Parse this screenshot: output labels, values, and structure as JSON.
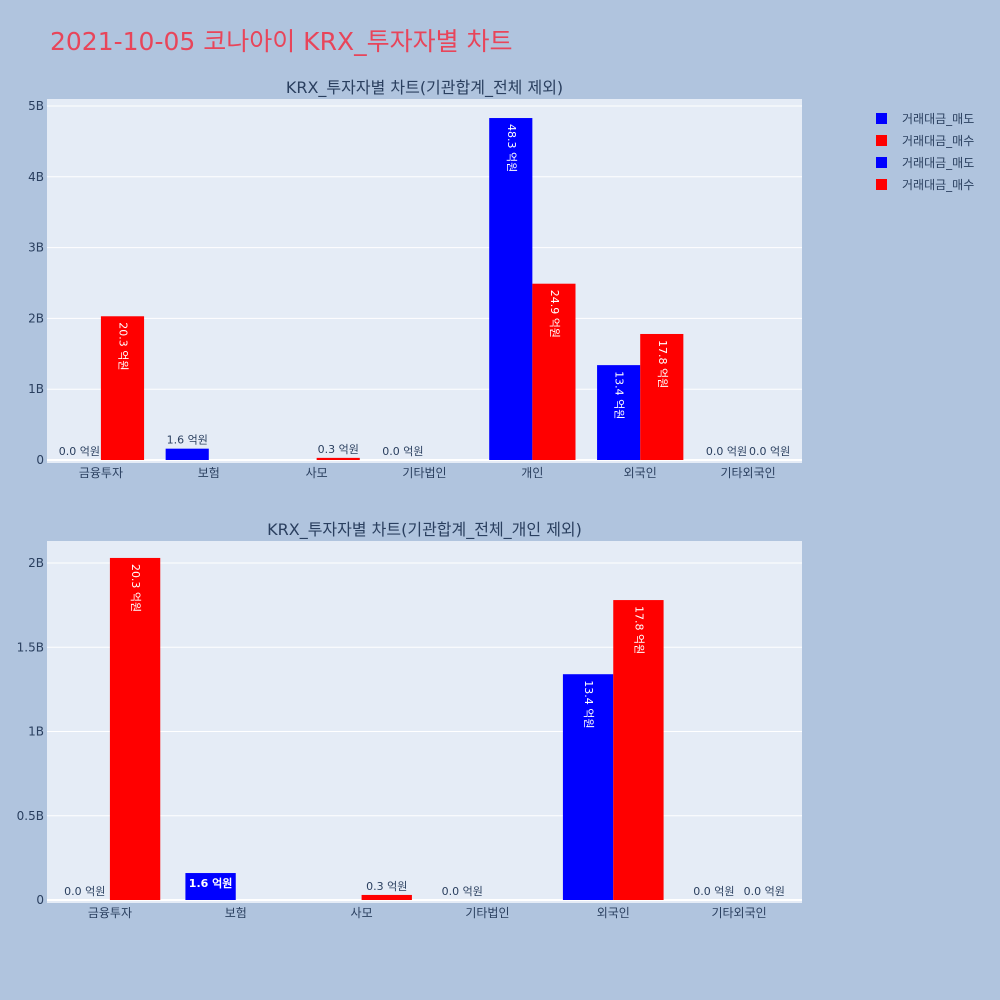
{
  "page_title": "2021-10-05 코나아이 KRX_투자자별 차트",
  "colors": {
    "sell": "#0000ff",
    "buy": "#ff0000",
    "title": "#e8455a",
    "plot_bg": "#e5ecf6",
    "page_bg": "#b0c4de"
  },
  "legend": [
    {
      "label": "거래대금_매도",
      "color": "#0000ff"
    },
    {
      "label": "거래대금_매수",
      "color": "#ff0000"
    },
    {
      "label": "거래대금_매도",
      "color": "#0000ff"
    },
    {
      "label": "거래대금_매수",
      "color": "#ff0000"
    }
  ],
  "chart_data": [
    {
      "type": "bar",
      "title": "KRX_투자자별 차트(기관합계_전체 제외)",
      "categories": [
        "금융투자",
        "보험",
        "사모",
        "기타법인",
        "개인",
        "외국인",
        "기타외국인"
      ],
      "y_ticks": [
        "0",
        "1B",
        "2B",
        "3B",
        "4B",
        "5B"
      ],
      "ylim": [
        0,
        5000000000
      ],
      "series": [
        {
          "name": "거래대금_매도",
          "color": "#0000ff",
          "values": [
            0,
            160000000,
            0,
            0,
            4830000000,
            1340000000,
            0
          ],
          "labels": [
            "0.0 억원",
            "1.6 억원",
            "",
            "0.0 억원",
            "48.3 억원",
            "13.4 억원",
            "0.0 억원"
          ]
        },
        {
          "name": "거래대금_매수",
          "color": "#ff0000",
          "values": [
            2030000000,
            0,
            30000000,
            0,
            2490000000,
            1780000000,
            0
          ],
          "labels": [
            "20.3 억원",
            "",
            "0.3 억원",
            "",
            "24.9 억원",
            "17.8 억원",
            "0.0 억원"
          ]
        }
      ]
    },
    {
      "type": "bar",
      "title": "KRX_투자자별 차트(기관합계_전체_개인 제외)",
      "categories": [
        "금융투자",
        "보험",
        "사모",
        "기타법인",
        "외국인",
        "기타외국인"
      ],
      "y_ticks": [
        "0",
        "0.5B",
        "1B",
        "1.5B",
        "2B"
      ],
      "ylim": [
        0,
        2000000000
      ],
      "series": [
        {
          "name": "거래대금_매도",
          "color": "#0000ff",
          "values": [
            0,
            160000000,
            0,
            0,
            1340000000,
            0
          ],
          "labels": [
            "0.0 억원",
            "1.6 억원",
            "",
            "0.0 억원",
            "13.4 억원",
            "0.0 억원"
          ]
        },
        {
          "name": "거래대금_매수",
          "color": "#ff0000",
          "values": [
            2030000000,
            0,
            30000000,
            0,
            1780000000,
            0
          ],
          "labels": [
            "20.3 억원",
            "",
            "0.3 억원",
            "",
            "17.8 억원",
            "0.0 억원"
          ]
        }
      ]
    }
  ]
}
